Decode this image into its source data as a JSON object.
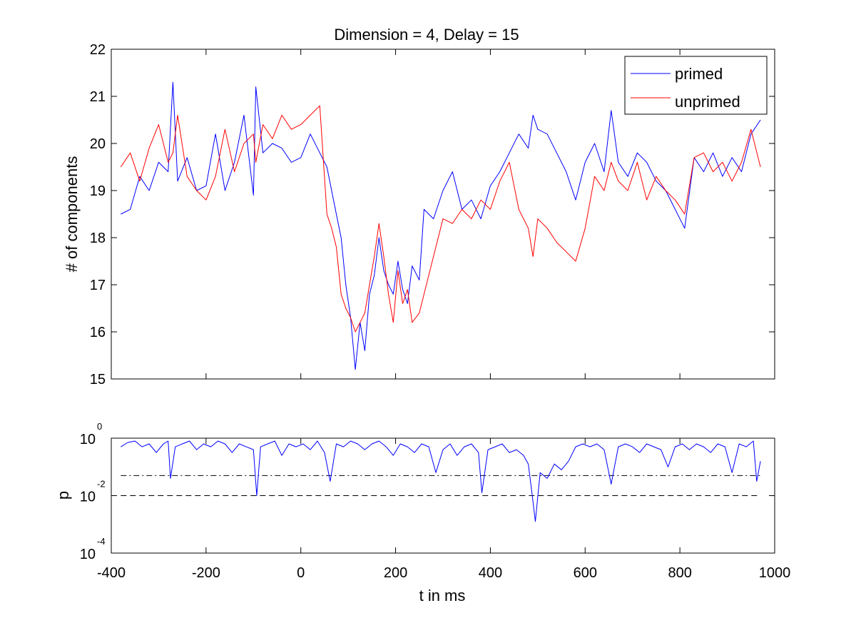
{
  "chart_data": [
    {
      "type": "line",
      "title": "Dimension  = 4, Delay = 15",
      "xlabel": "",
      "ylabel": "# of components",
      "xlim": [
        -400,
        1000
      ],
      "ylim": [
        15,
        22
      ],
      "yticks": [
        15,
        16,
        17,
        18,
        19,
        20,
        21,
        22
      ],
      "ytick_labels": [
        "15",
        "16",
        "17",
        "18",
        "19",
        "20",
        "21",
        "22"
      ],
      "grid": false,
      "legend_position": "top-right",
      "series": [
        {
          "name": "primed",
          "color": "#0000ff",
          "x": [
            -380,
            -360,
            -340,
            -320,
            -300,
            -280,
            -270,
            -260,
            -240,
            -220,
            -200,
            -180,
            -160,
            -140,
            -120,
            -100,
            -95,
            -80,
            -60,
            -40,
            -20,
            0,
            20,
            40,
            55,
            65,
            75,
            85,
            95,
            105,
            115,
            125,
            135,
            145,
            155,
            165,
            175,
            185,
            195,
            205,
            215,
            225,
            235,
            250,
            260,
            280,
            300,
            320,
            340,
            360,
            380,
            400,
            420,
            440,
            460,
            480,
            490,
            500,
            520,
            540,
            560,
            580,
            600,
            620,
            640,
            655,
            670,
            690,
            710,
            730,
            750,
            770,
            790,
            810,
            830,
            850,
            870,
            890,
            910,
            930,
            950,
            970
          ],
          "y": [
            18.5,
            18.6,
            19.3,
            19.0,
            19.6,
            19.4,
            21.3,
            19.2,
            19.7,
            19.0,
            19.1,
            20.2,
            19.0,
            19.6,
            20.6,
            18.9,
            21.2,
            19.8,
            20.0,
            19.9,
            19.6,
            19.7,
            20.2,
            19.8,
            19.5,
            19.0,
            18.5,
            18.0,
            17.0,
            16.3,
            15.2,
            16.2,
            15.6,
            16.8,
            17.2,
            18.0,
            17.3,
            17.0,
            16.8,
            17.5,
            16.9,
            16.6,
            17.4,
            17.1,
            18.6,
            18.4,
            19.0,
            19.4,
            18.6,
            18.8,
            18.4,
            19.1,
            19.4,
            19.8,
            20.2,
            19.9,
            20.6,
            20.3,
            20.2,
            19.8,
            19.4,
            18.8,
            19.6,
            20.0,
            19.4,
            20.7,
            19.6,
            19.3,
            19.8,
            19.6,
            19.2,
            19.0,
            18.6,
            18.2,
            19.7,
            19.4,
            19.8,
            19.3,
            19.7,
            19.4,
            20.2,
            20.5
          ]
        },
        {
          "name": "unprimed",
          "color": "#ff0000",
          "x": [
            -380,
            -360,
            -340,
            -320,
            -300,
            -280,
            -270,
            -260,
            -240,
            -220,
            -200,
            -180,
            -160,
            -140,
            -120,
            -100,
            -95,
            -80,
            -60,
            -40,
            -20,
            0,
            20,
            40,
            55,
            65,
            75,
            85,
            95,
            105,
            115,
            125,
            135,
            145,
            155,
            165,
            175,
            185,
            195,
            205,
            215,
            225,
            235,
            250,
            260,
            280,
            300,
            320,
            340,
            360,
            380,
            400,
            420,
            440,
            460,
            480,
            490,
            500,
            520,
            540,
            560,
            580,
            600,
            620,
            640,
            655,
            670,
            690,
            710,
            730,
            750,
            770,
            790,
            810,
            830,
            850,
            870,
            890,
            910,
            930,
            950,
            970
          ],
          "y": [
            19.5,
            19.8,
            19.2,
            19.9,
            20.4,
            19.6,
            19.8,
            20.6,
            19.3,
            19.0,
            18.8,
            19.3,
            20.3,
            19.4,
            20.0,
            20.2,
            19.6,
            20.4,
            20.1,
            20.6,
            20.3,
            20.4,
            20.6,
            20.8,
            18.5,
            18.2,
            17.8,
            16.8,
            16.5,
            16.3,
            16.0,
            16.2,
            16.4,
            17.0,
            17.6,
            18.3,
            17.6,
            16.8,
            16.2,
            17.3,
            16.6,
            16.9,
            16.2,
            16.4,
            16.8,
            17.6,
            18.4,
            18.3,
            18.6,
            18.4,
            18.8,
            18.6,
            19.2,
            19.6,
            18.6,
            18.2,
            17.6,
            18.4,
            18.2,
            17.9,
            17.7,
            17.5,
            18.2,
            19.3,
            19.0,
            19.6,
            19.2,
            19.0,
            19.6,
            18.8,
            19.3,
            19.0,
            18.8,
            18.5,
            19.7,
            19.8,
            19.4,
            19.6,
            19.2,
            19.6,
            20.3,
            19.5
          ]
        }
      ]
    },
    {
      "type": "line",
      "title": "",
      "xlabel": "t in ms",
      "ylabel": "p",
      "xlim": [
        -400,
        1000
      ],
      "xticks": [
        -400,
        -200,
        0,
        200,
        400,
        600,
        800,
        1000
      ],
      "xtick_labels": [
        "-400",
        "-200",
        "0",
        "200",
        "400",
        "600",
        "800",
        "1000"
      ],
      "ylim_log10": [
        -4,
        0
      ],
      "yscale": "log",
      "yticks": [
        {
          "base": "10",
          "exp": "0",
          "log10": 0
        },
        {
          "base": "10",
          "exp": "-2",
          "log10": -2
        },
        {
          "base": "10",
          "exp": "-4",
          "log10": -4
        }
      ],
      "grid": false,
      "reference_lines": [
        {
          "log10": -1.3,
          "style": "dash-dot",
          "color": "#000000",
          "x_range": [
            -380,
            970
          ]
        },
        {
          "log10": -2,
          "style": "dashed",
          "color": "#000000",
          "x_range": [
            -380,
            970
          ]
        }
      ],
      "series": [
        {
          "name": "",
          "color": "#0000ff",
          "x": [
            -380,
            -365,
            -350,
            -335,
            -320,
            -305,
            -290,
            -280,
            -275,
            -265,
            -250,
            -235,
            -220,
            -205,
            -190,
            -175,
            -160,
            -145,
            -130,
            -115,
            -100,
            -93,
            -85,
            -70,
            -55,
            -40,
            -25,
            -10,
            5,
            20,
            35,
            50,
            62,
            75,
            90,
            105,
            120,
            135,
            150,
            165,
            180,
            195,
            210,
            225,
            240,
            255,
            270,
            285,
            300,
            315,
            330,
            345,
            360,
            375,
            382,
            395,
            410,
            425,
            440,
            455,
            470,
            480,
            487,
            495,
            505,
            520,
            535,
            550,
            565,
            580,
            595,
            610,
            625,
            640,
            655,
            670,
            685,
            700,
            715,
            730,
            745,
            760,
            775,
            790,
            805,
            820,
            835,
            850,
            865,
            880,
            895,
            910,
            925,
            940,
            955,
            962,
            970
          ],
          "y_log10": [
            -0.3,
            -0.15,
            -0.1,
            -0.3,
            -0.2,
            -0.5,
            -0.2,
            -0.1,
            -1.4,
            -0.3,
            -0.2,
            -0.1,
            -0.4,
            -0.2,
            -0.3,
            -0.1,
            -0.2,
            -0.5,
            -0.2,
            -0.3,
            -0.4,
            -2.0,
            -0.3,
            -0.2,
            -0.1,
            -0.6,
            -0.2,
            -0.3,
            -0.2,
            -0.4,
            -0.1,
            -0.5,
            -1.5,
            -0.2,
            -0.3,
            -0.1,
            -0.2,
            -0.4,
            -0.2,
            -0.1,
            -0.3,
            -0.6,
            -0.2,
            -0.3,
            -0.5,
            -0.2,
            -0.3,
            -1.2,
            -0.4,
            -0.2,
            -0.6,
            -0.3,
            -0.2,
            -0.5,
            -1.9,
            -0.4,
            -0.3,
            -0.2,
            -0.5,
            -0.4,
            -0.6,
            -0.9,
            -1.8,
            -2.9,
            -1.2,
            -1.4,
            -0.9,
            -1.1,
            -0.8,
            -0.3,
            -0.2,
            -0.3,
            -0.2,
            -0.4,
            -1.6,
            -0.3,
            -0.2,
            -0.3,
            -0.5,
            -0.2,
            -0.3,
            -0.4,
            -1.0,
            -0.3,
            -0.2,
            -0.4,
            -0.2,
            -0.3,
            -0.5,
            -0.2,
            -0.3,
            -1.2,
            -0.2,
            -0.3,
            -0.1,
            -1.5,
            -0.8
          ]
        }
      ]
    }
  ]
}
